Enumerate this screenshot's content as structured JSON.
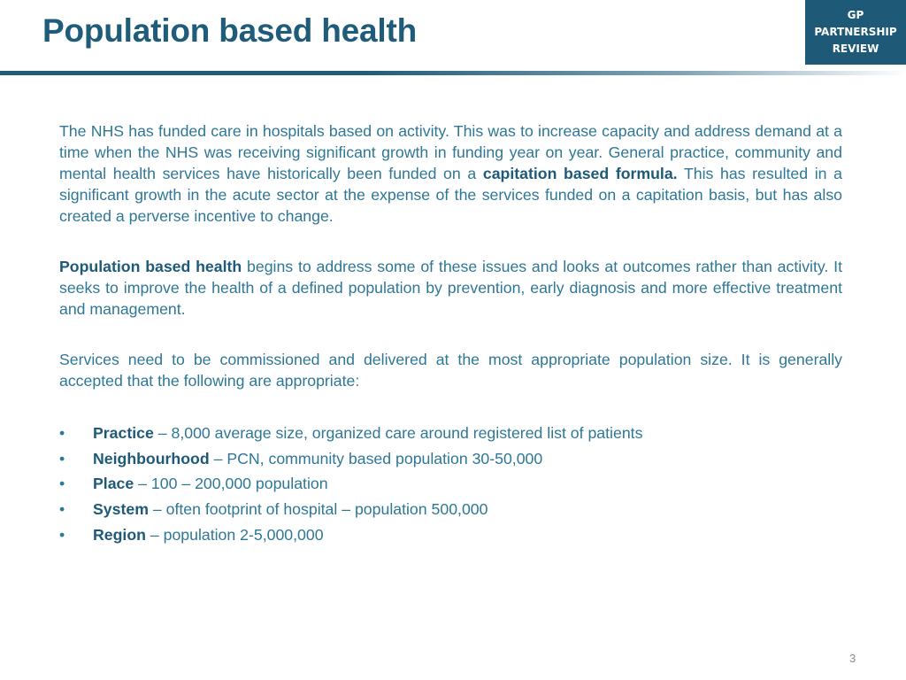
{
  "header": {
    "title": "Population based health",
    "badge": [
      "GP",
      "PARTNERSHIP",
      "REVIEW"
    ]
  },
  "paragraphs": {
    "p1": {
      "a": "The NHS has funded care in hospitals based on activity. This was to increase capacity and address demand at a time when the NHS was receiving significant growth in funding year on year. General practice, community and mental health services have historically been funded on a ",
      "b": "capitation based formula.",
      "c": "  This has resulted in a significant growth in the acute sector at the expense of the services funded on a capitation basis, but has also created a perverse incentive to change."
    },
    "p2": {
      "bold": "Population based health",
      "rest": " begins to address some of these issues and looks at outcomes rather than activity. It seeks to improve the health of a defined population by prevention, early diagnosis and more effective treatment and management."
    },
    "p3": "Services need to be commissioned and delivered at the most appropriate population size. It is generally accepted that the following are appropriate:"
  },
  "bullet_glyph": "•",
  "bullets": [
    {
      "term": "Practice",
      "desc": " – 8,000 average size, organized care around registered list of patients"
    },
    {
      "term": "Neighbourhood",
      "desc": " – PCN, community based population 30-50,000"
    },
    {
      "term": "Place",
      "desc": " – 100 – 200,000 population"
    },
    {
      "term": "System",
      "desc": " – often footprint of hospital – population 500,000"
    },
    {
      "term": "Region",
      "desc": " – population 2-5,000,000"
    }
  ],
  "footer": {
    "page_number": "3"
  }
}
